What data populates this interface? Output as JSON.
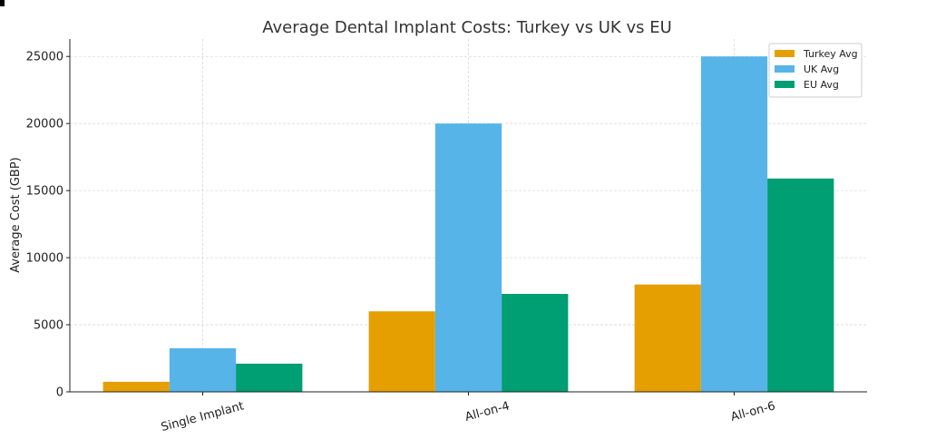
{
  "chart_data": {
    "type": "bar",
    "title": "Average Dental Implant Costs: Turkey vs UK vs EU",
    "xlabel": "",
    "ylabel": "Average Cost (GBP)",
    "categories": [
      "Single Implant",
      "All-on-4",
      "All-on-6"
    ],
    "series": [
      {
        "name": "Turkey Avg",
        "color": "#E69F00",
        "values": [
          750,
          6000,
          8000
        ]
      },
      {
        "name": "UK Avg",
        "color": "#56B4E9",
        "values": [
          3250,
          20000,
          25000
        ]
      },
      {
        "name": "EU Avg",
        "color": "#009E73",
        "values": [
          2100,
          7300,
          15900
        ]
      }
    ],
    "ylim": [
      0,
      26300
    ],
    "yticks": [
      0,
      5000,
      10000,
      15000,
      20000,
      25000
    ],
    "grid": true,
    "legend_position": "top-right"
  }
}
